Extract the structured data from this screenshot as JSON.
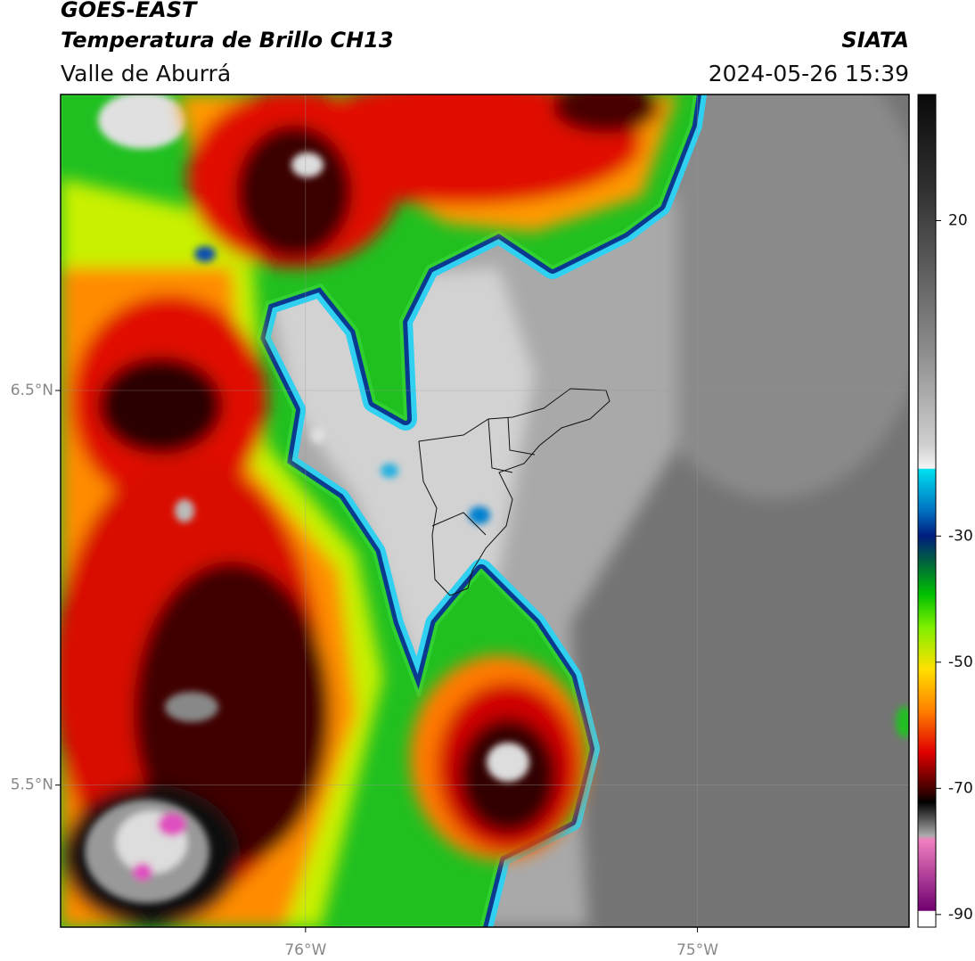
{
  "header": {
    "title": "GOES-EAST",
    "product": "Temperatura de Brillo CH13",
    "source": "SIATA",
    "region": "Valle de Aburrá",
    "datetime": "2024-05-26 15:39"
  },
  "map": {
    "xlim": [
      -76.625,
      -74.46
    ],
    "ylim": [
      5.14,
      7.25
    ],
    "xticks": [
      {
        "value": -76,
        "label": "76°W"
      },
      {
        "value": -75,
        "label": "75°W"
      }
    ],
    "yticks": [
      {
        "value": 6.5,
        "label": "6.5°N"
      },
      {
        "value": 5.5,
        "label": "5.5°N"
      }
    ],
    "grid": true
  },
  "colorbar": {
    "clim": [
      -92,
      40
    ],
    "ticks": [
      20,
      -30,
      -50,
      -70,
      -90
    ]
  }
}
